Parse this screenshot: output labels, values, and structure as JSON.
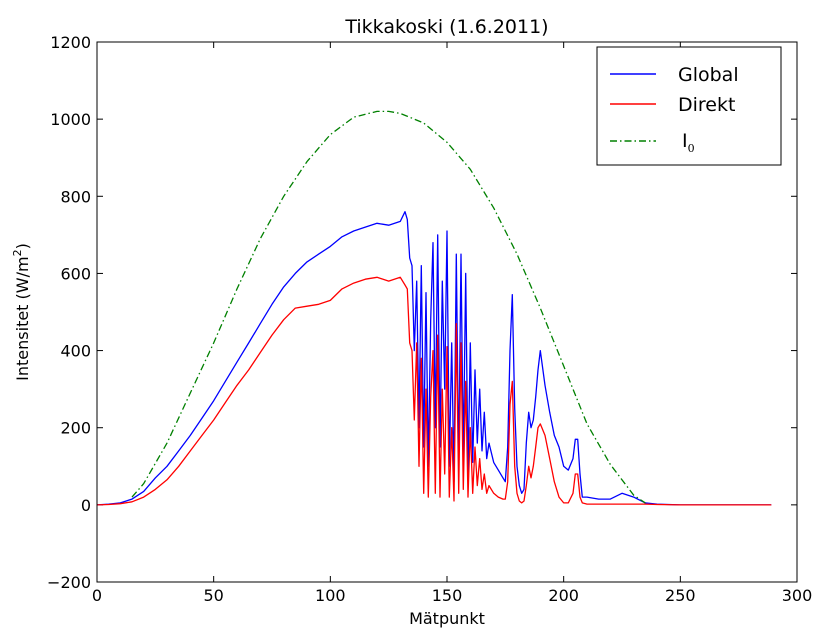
{
  "chart_data": {
    "type": "line",
    "title": "Tikkakoski (1.6.2011)",
    "xlabel": "Mätpunkt",
    "ylabel": "Intensitet (W/m²)",
    "ylabel_parts": {
      "base": "Intensitet (W/m",
      "sup": "2",
      "close": ")"
    },
    "xlim": [
      0,
      300
    ],
    "ylim": [
      -200,
      1200
    ],
    "xticks": [
      0,
      50,
      100,
      150,
      200,
      250,
      300
    ],
    "yticks": [
      -200,
      0,
      200,
      400,
      600,
      800,
      1000,
      1200
    ],
    "xtick_labels": [
      "0",
      "50",
      "100",
      "150",
      "200",
      "250",
      "300"
    ],
    "ytick_labels": [
      "−200",
      "0",
      "200",
      "400",
      "600",
      "800",
      "1000",
      "1200"
    ],
    "grid": false,
    "legend_position": "top-right",
    "series": [
      {
        "name": "Global",
        "color": "#0000ff",
        "style": "solid",
        "x": [
          0,
          5,
          10,
          15,
          20,
          25,
          30,
          35,
          40,
          45,
          50,
          55,
          60,
          65,
          70,
          75,
          80,
          85,
          90,
          95,
          100,
          105,
          110,
          115,
          120,
          125,
          130,
          132,
          133,
          134,
          135,
          136,
          137,
          138,
          139,
          140,
          141,
          142,
          143,
          144,
          145,
          146,
          147,
          148,
          149,
          150,
          151,
          152,
          153,
          154,
          155,
          156,
          157,
          158,
          159,
          160,
          161,
          162,
          163,
          164,
          165,
          166,
          167,
          168,
          170,
          172,
          174,
          175,
          176,
          177,
          178,
          179,
          180,
          181,
          182,
          183,
          184,
          185,
          186,
          187,
          188,
          189,
          190,
          192,
          194,
          196,
          198,
          200,
          202,
          204,
          205,
          206,
          207,
          208,
          210,
          215,
          220,
          225,
          230,
          235,
          240,
          250,
          260,
          270,
          280,
          289
        ],
        "y": [
          0,
          2,
          5,
          15,
          35,
          70,
          100,
          140,
          180,
          225,
          270,
          320,
          370,
          420,
          470,
          520,
          565,
          600,
          630,
          650,
          670,
          695,
          710,
          720,
          730,
          725,
          735,
          760,
          740,
          640,
          620,
          400,
          580,
          200,
          620,
          150,
          550,
          100,
          480,
          680,
          200,
          700,
          150,
          580,
          300,
          710,
          100,
          420,
          60,
          650,
          100,
          650,
          120,
          600,
          80,
          420,
          110,
          350,
          160,
          300,
          140,
          240,
          120,
          160,
          110,
          90,
          70,
          60,
          150,
          400,
          545,
          250,
          100,
          50,
          30,
          40,
          160,
          240,
          200,
          220,
          280,
          350,
          400,
          310,
          240,
          180,
          150,
          100,
          90,
          120,
          170,
          170,
          80,
          20,
          20,
          15,
          15,
          30,
          20,
          5,
          2,
          0,
          0,
          0,
          0,
          0
        ]
      },
      {
        "name": "Direkt",
        "color": "#ff0000",
        "style": "solid",
        "x": [
          0,
          5,
          10,
          15,
          20,
          25,
          30,
          35,
          40,
          45,
          50,
          55,
          60,
          65,
          70,
          75,
          80,
          85,
          90,
          95,
          100,
          105,
          110,
          115,
          120,
          125,
          130,
          132,
          133,
          134,
          135,
          136,
          137,
          138,
          139,
          140,
          141,
          142,
          143,
          144,
          145,
          146,
          147,
          148,
          149,
          150,
          151,
          152,
          153,
          154,
          155,
          156,
          157,
          158,
          159,
          160,
          161,
          162,
          163,
          164,
          165,
          166,
          167,
          168,
          170,
          172,
          174,
          175,
          176,
          177,
          178,
          179,
          180,
          181,
          182,
          183,
          184,
          185,
          186,
          187,
          188,
          189,
          190,
          192,
          194,
          196,
          198,
          200,
          202,
          204,
          205,
          206,
          207,
          208,
          210,
          215,
          220,
          225,
          230,
          235,
          240,
          250,
          260,
          270,
          280,
          289
        ],
        "y": [
          0,
          1,
          3,
          8,
          20,
          40,
          65,
          100,
          140,
          180,
          220,
          265,
          310,
          350,
          395,
          440,
          480,
          510,
          515,
          520,
          530,
          560,
          575,
          585,
          590,
          580,
          590,
          570,
          560,
          420,
          400,
          220,
          420,
          100,
          380,
          30,
          300,
          20,
          280,
          400,
          30,
          440,
          20,
          300,
          80,
          410,
          20,
          200,
          10,
          470,
          30,
          420,
          40,
          320,
          20,
          200,
          30,
          150,
          50,
          120,
          40,
          80,
          30,
          50,
          30,
          20,
          15,
          15,
          60,
          260,
          320,
          100,
          30,
          10,
          5,
          10,
          50,
          100,
          70,
          100,
          150,
          200,
          210,
          180,
          120,
          60,
          20,
          5,
          5,
          30,
          80,
          80,
          20,
          5,
          2,
          2,
          2,
          2,
          2,
          2,
          1,
          0,
          0,
          0,
          0,
          0
        ]
      },
      {
        "name": "I0",
        "name_parts": {
          "base": "I",
          "sub": "0"
        },
        "color": "#008000",
        "style": "dashdot",
        "x": [
          15,
          20,
          30,
          40,
          50,
          60,
          70,
          80,
          90,
          100,
          110,
          120,
          125,
          130,
          140,
          150,
          160,
          170,
          180,
          190,
          200,
          210,
          220,
          230,
          235
        ],
        "y": [
          20,
          55,
          160,
          290,
          420,
          560,
          690,
          800,
          890,
          960,
          1005,
          1020,
          1020,
          1015,
          990,
          940,
          870,
          770,
          650,
          510,
          360,
          210,
          105,
          25,
          5
        ]
      }
    ]
  }
}
